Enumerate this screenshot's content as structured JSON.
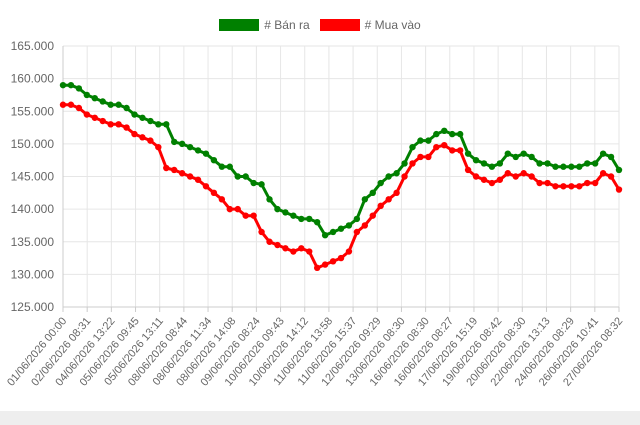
{
  "chart_data": {
    "type": "line",
    "legend_position": "top",
    "grid": true,
    "ylim": [
      125000,
      165000
    ],
    "yticks": [
      "165.000",
      "160.000",
      "155.000",
      "150.000",
      "145.000",
      "140.000",
      "135.000",
      "130.000",
      "125.000"
    ],
    "ytick_values": [
      165000,
      160000,
      155000,
      150000,
      145000,
      140000,
      135000,
      130000,
      125000
    ],
    "xtick_labels": [
      "01/06/2026 00:00",
      "02/06/2026 08:31",
      "04/06/2026 13:22",
      "05/06/2026 09:45",
      "05/06/2026 13:11",
      "08/06/2026 08:44",
      "08/06/2026 11:34",
      "08/06/2026 14:08",
      "09/06/2026 08:24",
      "10/06/2026 09:43",
      "10/06/2026 14:12",
      "11/06/2026 13:58",
      "11/06/2026 15:37",
      "12/06/2026 09:29",
      "13/06/2026 08:30",
      "16/06/2026 08:30",
      "16/06/2026 08:27",
      "17/06/2026 15:19",
      "19/06/2026 08:42",
      "20/06/2026 08:30",
      "22/06/2026 13:13",
      "24/06/2026 08:29",
      "26/06/2026 10:41",
      "27/06/2026 08:32"
    ],
    "series": [
      {
        "name": "# Bán ra",
        "color": "#008000",
        "values": [
          159000,
          159000,
          158500,
          157500,
          157000,
          156500,
          156000,
          156000,
          155500,
          154500,
          154000,
          153500,
          153000,
          153000,
          150300,
          150000,
          149500,
          149000,
          148500,
          147500,
          146500,
          146500,
          145000,
          145000,
          144000,
          143800,
          141500,
          140000,
          139500,
          139000,
          138500,
          138500,
          138000,
          136000,
          136500,
          137000,
          137500,
          138500,
          141500,
          142500,
          144000,
          145000,
          145500,
          147000,
          149500,
          150500,
          150500,
          151500,
          152000,
          151500,
          151500,
          148500,
          147500,
          147000,
          146500,
          147000,
          148500,
          148000,
          148500,
          148000,
          147000,
          147000,
          146500,
          146500,
          146500,
          146500,
          147000,
          147000,
          148500,
          148000,
          146000
        ]
      },
      {
        "name": "# Mua vào",
        "color": "#ff0000",
        "values": [
          156000,
          156000,
          155500,
          154500,
          154000,
          153500,
          153000,
          153000,
          152500,
          151500,
          151000,
          150500,
          149500,
          146300,
          146000,
          145500,
          145000,
          144500,
          143500,
          142500,
          141500,
          140000,
          140000,
          139000,
          139000,
          136500,
          135000,
          134500,
          134000,
          133500,
          134000,
          133500,
          131000,
          131500,
          132000,
          132500,
          133500,
          136500,
          137500,
          139000,
          140500,
          141500,
          142500,
          145000,
          147000,
          148000,
          148000,
          149500,
          149800,
          149000,
          149000,
          146000,
          145000,
          144500,
          144000,
          144500,
          145500,
          145000,
          145500,
          145000,
          144000,
          144000,
          143500,
          143500,
          143500,
          143500,
          144000,
          144000,
          145500,
          145000,
          143000
        ]
      }
    ]
  }
}
